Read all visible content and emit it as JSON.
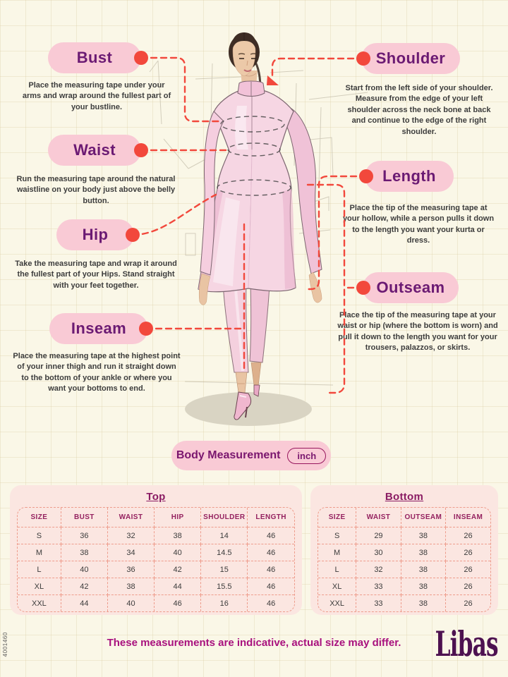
{
  "theme": {
    "background": "#FAF7E7",
    "pill_pink": "#F9CAD5",
    "heading_purple": "#6B1A73",
    "accent_red": "#F2483C",
    "table_panel_pink": "#FBE6E1",
    "table_dashed_border": "#EE9C8C",
    "table_header_magenta": "#94215F",
    "footer_magenta": "#A8117E",
    "brand_purple": "#4D1150"
  },
  "figure": {
    "name": "fashion-illustration-woman-in-pink-kurta-set"
  },
  "measurements": [
    {
      "label": "Bust",
      "description": "Place the measuring tape under your arms and wrap around the fullest part of your bustline."
    },
    {
      "label": "Waist",
      "description": "Run the measuring tape around the natural waistline on your body just above the belly button."
    },
    {
      "label": "Hip",
      "description": "Take the measuring tape and wrap it around the fullest part of your Hips. Stand straight with your feet together."
    },
    {
      "label": "Inseam",
      "description": "Place the measuring tape at the highest point of your inner thigh and run it straight down to the bottom of your ankle or where you want your bottoms to end."
    },
    {
      "label": "Shoulder",
      "description": "Start from the left side of your shoulder. Measure from the edge of your left shoulder across the neck bone at back and continue to the edge of the right shoulder."
    },
    {
      "label": "Length",
      "description": "Place the tip of the measuring tape at your hollow, while a person pulls it down to the length you want your kurta or dress."
    },
    {
      "label": "Outseam",
      "description": "Place the tip of the measuring tape at your waist or hip (where the bottom is worn) and pull it down to the length you want for your trousers, palazzos, or skirts."
    }
  ],
  "unit_banner": {
    "label": "Body Measurement",
    "unit": "inch"
  },
  "size_tables": {
    "top": {
      "title": "Top",
      "headers": [
        "SIZE",
        "BUST",
        "WAIST",
        "HIP",
        "SHOULDER",
        "LENGTH"
      ],
      "rows": [
        [
          "S",
          "36",
          "32",
          "38",
          "14",
          "46"
        ],
        [
          "M",
          "38",
          "34",
          "40",
          "14.5",
          "46"
        ],
        [
          "L",
          "40",
          "36",
          "42",
          "15",
          "46"
        ],
        [
          "XL",
          "42",
          "38",
          "44",
          "15.5",
          "46"
        ],
        [
          "XXL",
          "44",
          "40",
          "46",
          "16",
          "46"
        ]
      ]
    },
    "bottom": {
      "title": "Bottom",
      "headers": [
        "SIZE",
        "WAIST",
        "OUTSEAM",
        "INSEAM"
      ],
      "rows": [
        [
          "S",
          "29",
          "38",
          "26"
        ],
        [
          "M",
          "30",
          "38",
          "26"
        ],
        [
          "L",
          "32",
          "38",
          "26"
        ],
        [
          "XL",
          "33",
          "38",
          "26"
        ],
        [
          "XXL",
          "33",
          "38",
          "26"
        ]
      ]
    }
  },
  "footer": {
    "note": "These measurements are indicative, actual size may differ.",
    "brand": "Libas",
    "side_code": "4001460"
  }
}
